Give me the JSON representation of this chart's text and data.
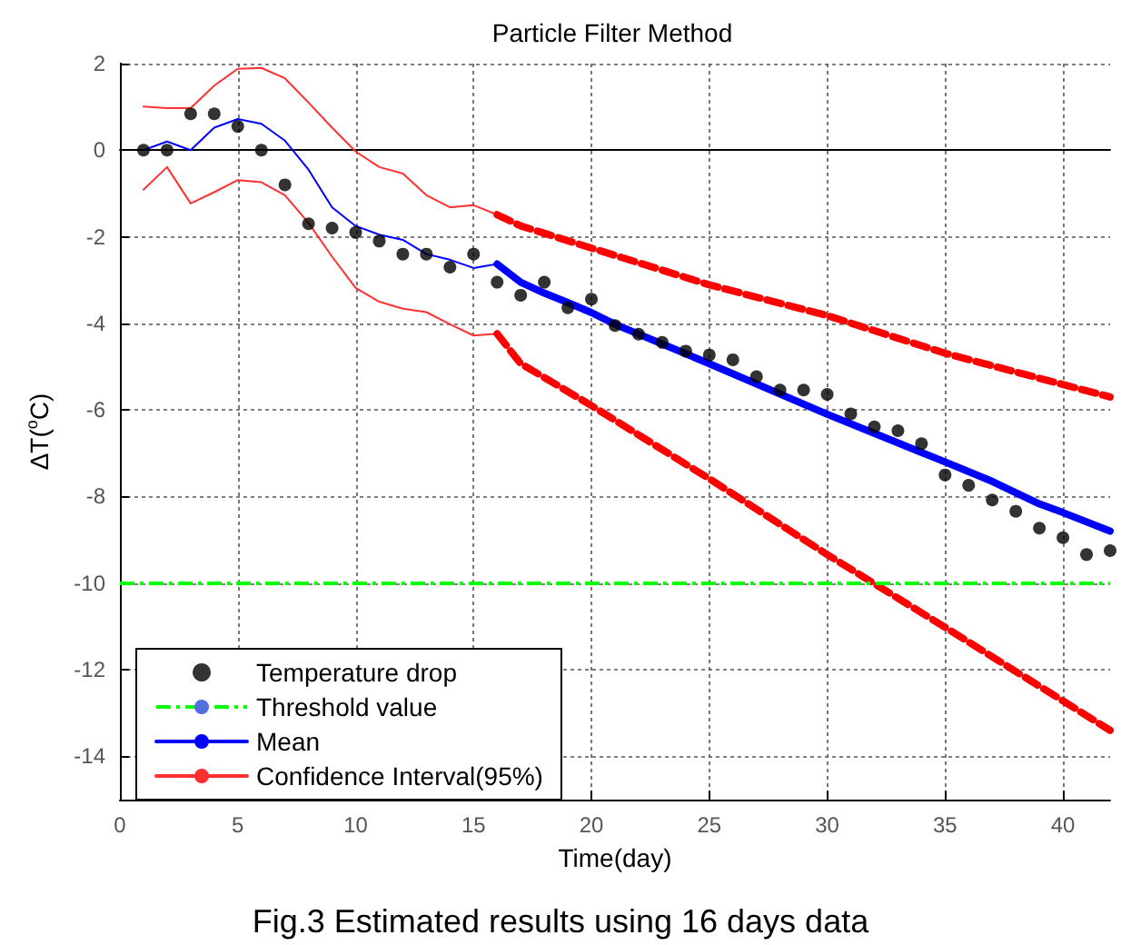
{
  "chart_data": {
    "type": "line",
    "title": "Particle Filter Method",
    "xlabel": "Time(day)",
    "ylabel": "ΔT($^{o}$C)",
    "annotations": [
      "Fig.3 Estimated results using 16 days data"
    ],
    "xlim": [
      0,
      42
    ],
    "xticks": [
      0,
      5,
      10,
      15,
      20,
      25,
      30,
      35,
      40
    ],
    "ylim": [
      -15,
      2
    ],
    "yticks": [
      -14,
      -12,
      -10,
      -8,
      -6,
      -4,
      -2,
      0,
      2
    ],
    "grid": true,
    "legend": "bottom left",
    "ref_lines": [
      {
        "axis": "y",
        "value": -10,
        "label": "Threshold value",
        "color": "#00ff00",
        "line_style": "dashed"
      }
    ],
    "series": [
      {
        "type": "scatter",
        "name": "Temperature drop",
        "color": "#000000",
        "marker": "circle",
        "x": [
          1,
          2,
          3,
          4,
          5,
          6,
          7,
          8,
          9,
          10,
          11,
          12,
          13,
          14,
          15,
          16,
          17,
          18,
          19,
          20,
          21,
          22,
          23,
          24,
          25,
          26,
          27,
          28,
          29,
          30,
          31,
          32,
          33,
          34,
          35,
          36,
          37,
          38,
          39,
          40,
          41,
          42
        ],
        "values": [
          0,
          0,
          0.84,
          0.84,
          0.55,
          0,
          -0.8,
          -1.7,
          -1.8,
          -1.9,
          -2.1,
          -2.4,
          -2.4,
          -2.7,
          -2.4,
          -3.05,
          -3.35,
          -3.05,
          -3.64,
          -3.44,
          -4.05,
          -4.25,
          -4.44,
          -4.64,
          -4.73,
          -4.84,
          -5.23,
          -5.54,
          -5.54,
          -5.64,
          -6.09,
          -6.39,
          -6.48,
          -6.78,
          -7.5,
          -7.74,
          -8.08,
          -8.34,
          -8.73,
          -8.95,
          -9.34,
          -9.25
        ]
      },
      {
        "name": "Mean",
        "color": "#0000ff",
        "line_style": "solid",
        "x": [
          1,
          2,
          3,
          4,
          5,
          6,
          7,
          8,
          9,
          10,
          11,
          12,
          13,
          14,
          15,
          16
        ],
        "values": [
          0,
          0.2,
          0,
          0.52,
          0.72,
          0.61,
          0.22,
          -0.45,
          -1.32,
          -1.75,
          -1.95,
          -2.07,
          -2.4,
          -2.53,
          -2.72,
          -2.63
        ]
      },
      {
        "color": "#0000ff",
        "line_style": "solid",
        "x": [
          16,
          17,
          18,
          19,
          20,
          21,
          25,
          30,
          35,
          37,
          39,
          40,
          42
        ],
        "values": [
          -2.63,
          -3.05,
          -3.3,
          -3.52,
          -3.75,
          -4.02,
          -4.93,
          -6.1,
          -7.2,
          -7.65,
          -8.17,
          -8.37,
          -8.8
        ]
      },
      {
        "name": "Confidence Interval(95%)",
        "color": "#ff3030",
        "line_style": "solid",
        "x": [
          1,
          2,
          3,
          4,
          5,
          6,
          7,
          8,
          9,
          10,
          11,
          12,
          13,
          14,
          15,
          16
        ],
        "values": [
          1.01,
          0.97,
          0.97,
          1.49,
          1.88,
          1.9,
          1.66,
          1.1,
          0.52,
          -0.03,
          -0.39,
          -0.54,
          -1.04,
          -1.32,
          -1.27,
          -1.49
        ]
      },
      {
        "color": "#ff3030",
        "line_style": "solid",
        "x": [
          1,
          2,
          3,
          4,
          5,
          6,
          7,
          8,
          9,
          10,
          11,
          12,
          13,
          14,
          15,
          16
        ],
        "values": [
          -0.91,
          -0.39,
          -1.23,
          -0.97,
          -0.69,
          -0.74,
          -1.04,
          -1.68,
          -2.46,
          -3.18,
          -3.5,
          -3.66,
          -3.74,
          -4.02,
          -4.28,
          -4.24
        ]
      },
      {
        "color": "#ff0000",
        "line_style": "dashed",
        "x": [
          16,
          17,
          25,
          30,
          35,
          42
        ],
        "values": [
          -1.49,
          -1.75,
          -3.11,
          -3.82,
          -4.69,
          -5.7
        ]
      },
      {
        "color": "#ff0000",
        "line_style": "dashed",
        "x": [
          16,
          17,
          18,
          20,
          25,
          30,
          35,
          42
        ],
        "values": [
          -4.24,
          -4.93,
          -5.25,
          -5.9,
          -7.59,
          -9.34,
          -11.02,
          -13.4
        ]
      }
    ]
  }
}
